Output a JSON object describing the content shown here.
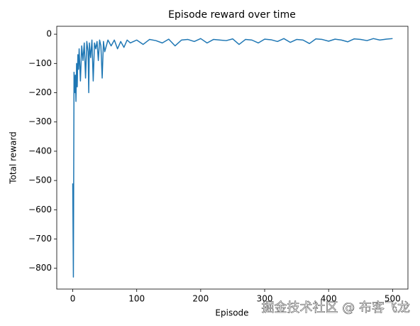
{
  "chart_data": {
    "type": "line",
    "title": "Episode reward over time",
    "xlabel": "Episode",
    "ylabel": "Total reward",
    "watermark": "掘金技术社区 @ 布客飞龙",
    "x": [
      0,
      1,
      2,
      3,
      4,
      5,
      6,
      7,
      8,
      9,
      10,
      12,
      14,
      16,
      18,
      20,
      22,
      24,
      25,
      26,
      28,
      30,
      32,
      34,
      36,
      38,
      40,
      42,
      44,
      46,
      48,
      50,
      55,
      60,
      65,
      70,
      75,
      80,
      85,
      90,
      95,
      100,
      110,
      120,
      130,
      140,
      150,
      160,
      170,
      180,
      190,
      200,
      210,
      220,
      230,
      240,
      250,
      260,
      270,
      280,
      290,
      300,
      310,
      320,
      330,
      340,
      350,
      360,
      370,
      380,
      390,
      400,
      410,
      420,
      430,
      440,
      450,
      460,
      470,
      480,
      490,
      500
    ],
    "series": [
      {
        "name": "reward",
        "color": "#1f77b4",
        "values": [
          -510,
          -830,
          -130,
          -200,
          -140,
          -230,
          -100,
          -180,
          -70,
          -120,
          -50,
          -160,
          -40,
          -90,
          -30,
          -150,
          -25,
          -60,
          -200,
          -30,
          -80,
          -20,
          -160,
          -30,
          -50,
          -25,
          -90,
          -20,
          -40,
          -150,
          -25,
          -60,
          -20,
          -40,
          -20,
          -50,
          -25,
          -45,
          -20,
          -30,
          -25,
          -20,
          -35,
          -18,
          -22,
          -30,
          -17,
          -40,
          -20,
          -18,
          -25,
          -15,
          -30,
          -18,
          -20,
          -22,
          -16,
          -35,
          -18,
          -20,
          -30,
          -17,
          -19,
          -25,
          -15,
          -28,
          -18,
          -20,
          -32,
          -16,
          -18,
          -24,
          -17,
          -20,
          -26,
          -16,
          -18,
          -22,
          -15,
          -20,
          -17,
          -15
        ]
      }
    ],
    "xlim": [
      -25,
      524
    ],
    "xticks": [
      0,
      100,
      200,
      300,
      400,
      500
    ],
    "ylim": [
      -871,
      27
    ],
    "yticks": [
      {
        "value": -800,
        "label": "−800"
      },
      {
        "value": -700,
        "label": "−700"
      },
      {
        "value": -600,
        "label": "−600"
      },
      {
        "value": -500,
        "label": "−500"
      },
      {
        "value": -400,
        "label": "−400"
      },
      {
        "value": -300,
        "label": "−300"
      },
      {
        "value": -200,
        "label": "−200"
      },
      {
        "value": -100,
        "label": "−100"
      },
      0
    ]
  }
}
